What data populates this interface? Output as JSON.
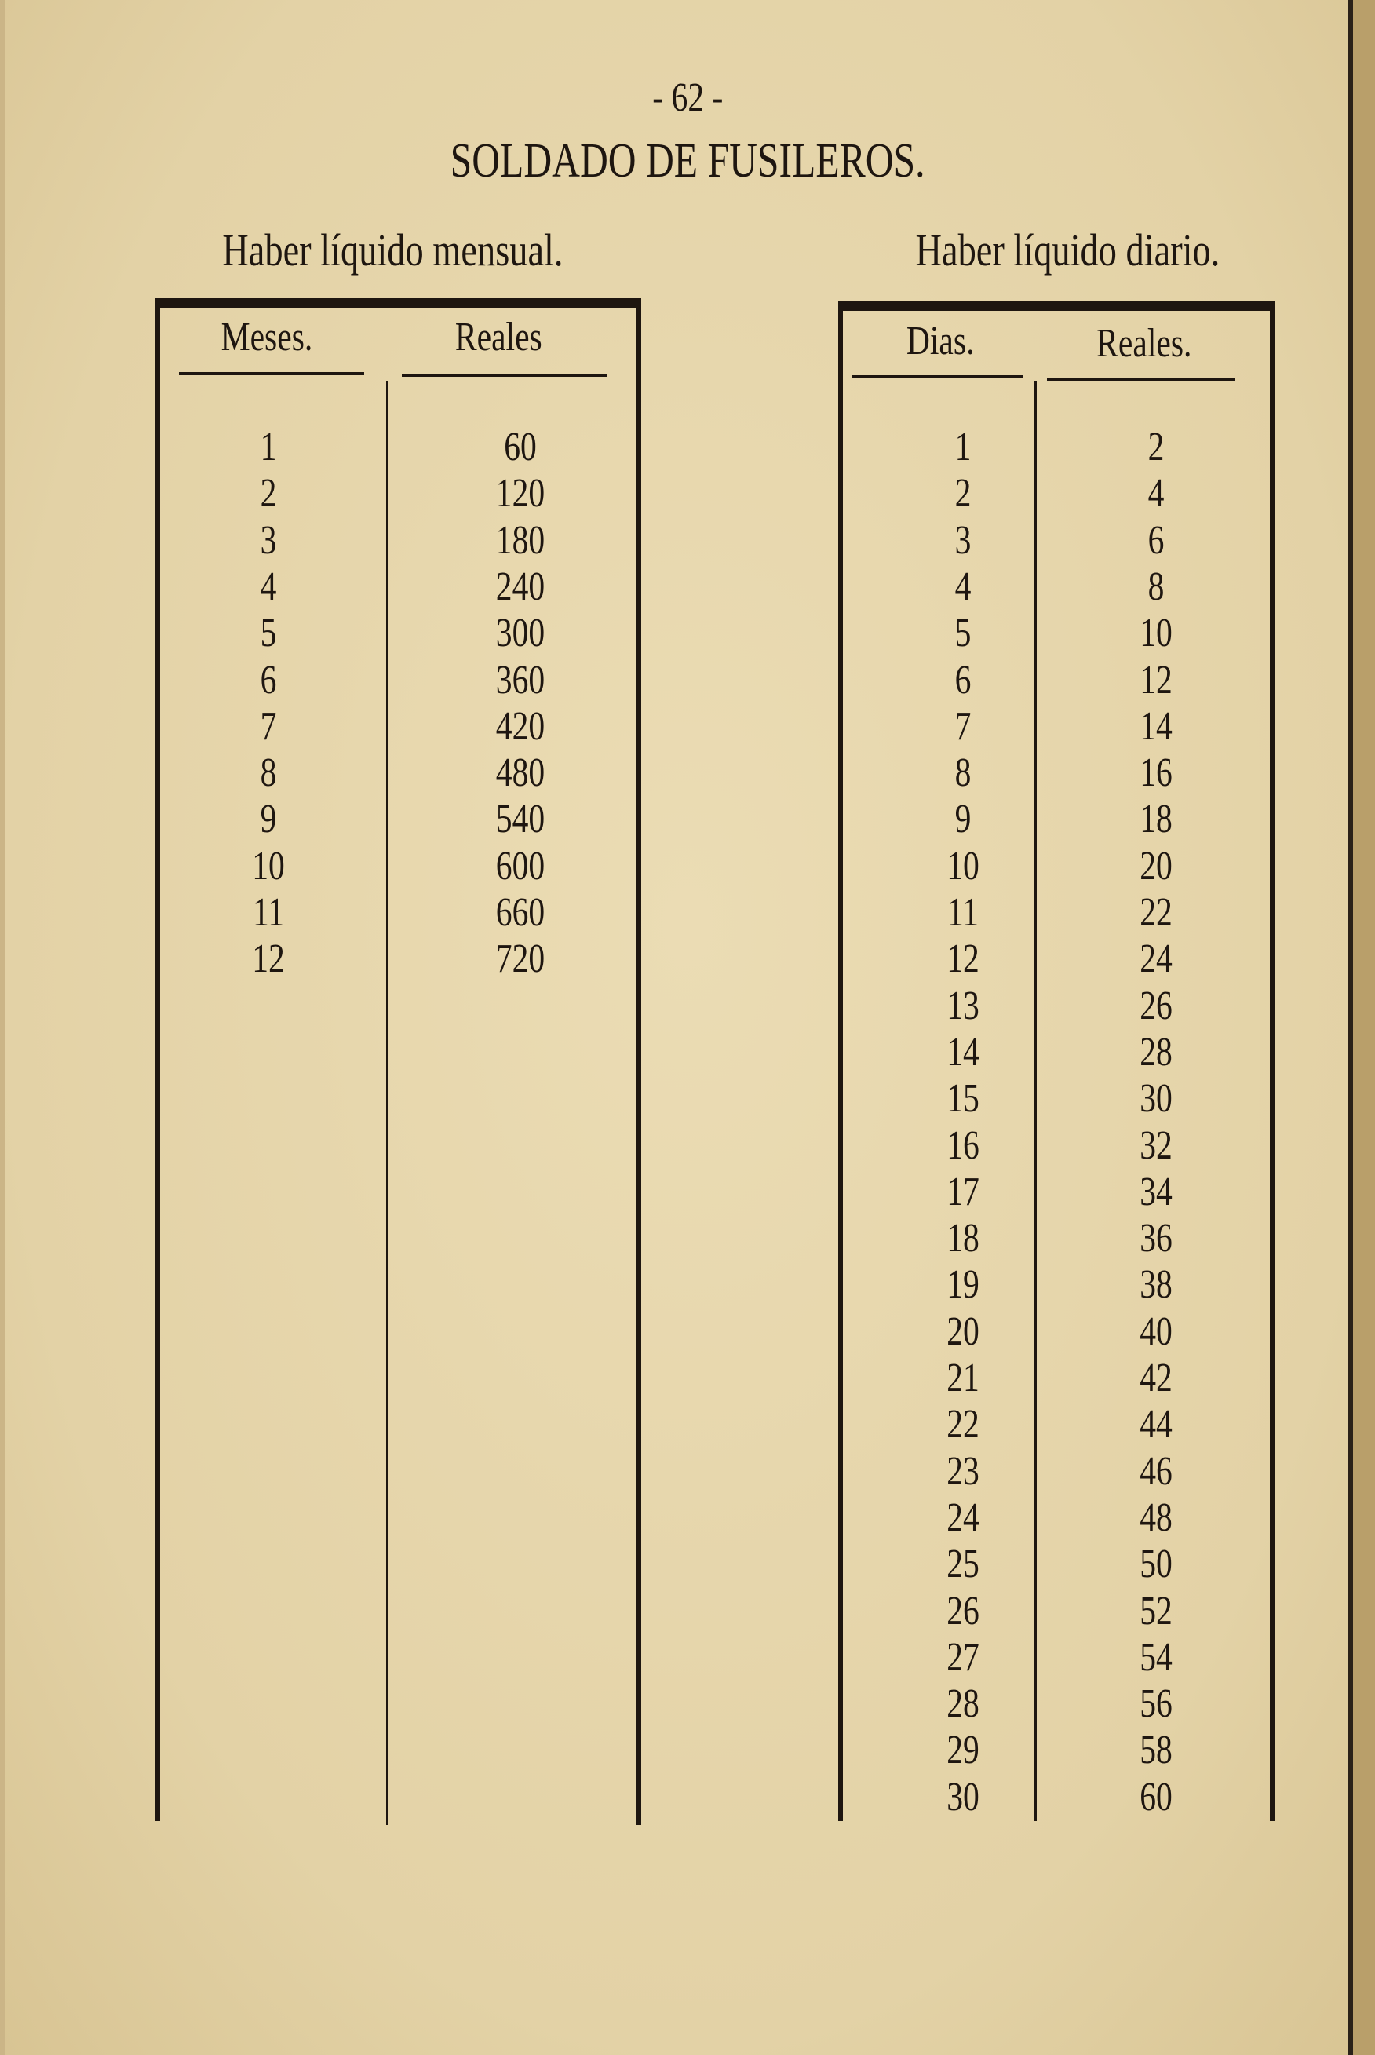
{
  "page_number": "- 62 -",
  "title": "SOLDADO DE FUSILEROS.",
  "monthly": {
    "heading": "Haber líquido mensual.",
    "columns": [
      "Meses.",
      "Reales"
    ],
    "rows": [
      [
        "1",
        "60"
      ],
      [
        "2",
        "120"
      ],
      [
        "3",
        "180"
      ],
      [
        "4",
        "240"
      ],
      [
        "5",
        "300"
      ],
      [
        "6",
        "360"
      ],
      [
        "7",
        "420"
      ],
      [
        "8",
        "480"
      ],
      [
        "9",
        "540"
      ],
      [
        "10",
        "600"
      ],
      [
        "11",
        "660"
      ],
      [
        "12",
        "720"
      ]
    ]
  },
  "daily": {
    "heading": "Haber líquido diario.",
    "columns": [
      "Dias.",
      "Reales."
    ],
    "rows": [
      [
        "1",
        "2"
      ],
      [
        "2",
        "4"
      ],
      [
        "3",
        "6"
      ],
      [
        "4",
        "8"
      ],
      [
        "5",
        "10"
      ],
      [
        "6",
        "12"
      ],
      [
        "7",
        "14"
      ],
      [
        "8",
        "16"
      ],
      [
        "9",
        "18"
      ],
      [
        "10",
        "20"
      ],
      [
        "11",
        "22"
      ],
      [
        "12",
        "24"
      ],
      [
        "13",
        "26"
      ],
      [
        "14",
        "28"
      ],
      [
        "15",
        "30"
      ],
      [
        "16",
        "32"
      ],
      [
        "17",
        "34"
      ],
      [
        "18",
        "36"
      ],
      [
        "19",
        "38"
      ],
      [
        "20",
        "40"
      ],
      [
        "21",
        "42"
      ],
      [
        "22",
        "44"
      ],
      [
        "23",
        "46"
      ],
      [
        "24",
        "48"
      ],
      [
        "25",
        "50"
      ],
      [
        "26",
        "52"
      ],
      [
        "27",
        "54"
      ],
      [
        "28",
        "56"
      ],
      [
        "29",
        "58"
      ],
      [
        "30",
        "60"
      ]
    ]
  }
}
